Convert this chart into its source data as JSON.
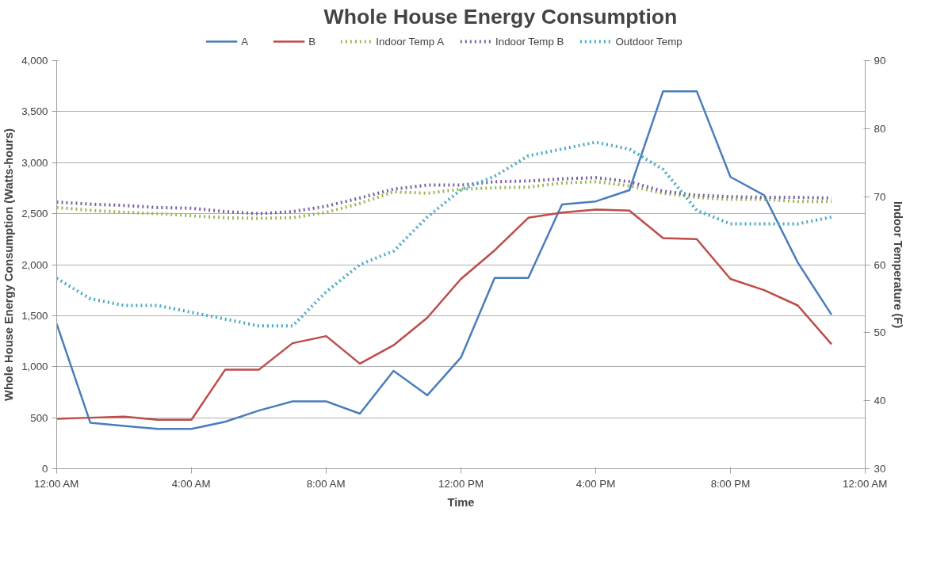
{
  "chart_data": {
    "type": "line",
    "title": "Whole House Energy Consumption",
    "xlabel": "Time",
    "ylabel": "Whole House Energy Consumption (Watts-hours)",
    "y2label": "Indoor Temperature (F)",
    "x": [
      0,
      1,
      2,
      3,
      4,
      5,
      6,
      7,
      8,
      9,
      10,
      11,
      12,
      13,
      14,
      15,
      16,
      17,
      18,
      19,
      20,
      21,
      22,
      23
    ],
    "xlim": [
      0,
      24
    ],
    "xticks": [
      {
        "value": 0,
        "label": "12:00 AM"
      },
      {
        "value": 4,
        "label": "4:00 AM"
      },
      {
        "value": 8,
        "label": "8:00 AM"
      },
      {
        "value": 12,
        "label": "12:00 PM"
      },
      {
        "value": 16,
        "label": "4:00 PM"
      },
      {
        "value": 20,
        "label": "8:00 PM"
      },
      {
        "value": 24,
        "label": "12:00 AM"
      }
    ],
    "ylim": [
      0,
      4000
    ],
    "yticks": [
      {
        "value": 0,
        "label": "0"
      },
      {
        "value": 500,
        "label": "500"
      },
      {
        "value": 1000,
        "label": "1,000"
      },
      {
        "value": 1500,
        "label": "1,500"
      },
      {
        "value": 2000,
        "label": "2,000"
      },
      {
        "value": 2500,
        "label": "2,500"
      },
      {
        "value": 3000,
        "label": "3,000"
      },
      {
        "value": 3500,
        "label": "3,500"
      },
      {
        "value": 4000,
        "label": "4,000"
      }
    ],
    "y2lim": [
      30,
      90
    ],
    "y2ticks": [
      30,
      40,
      50,
      60,
      70,
      80,
      90
    ],
    "grid": "y",
    "legend": "top",
    "marker": "none",
    "series": [
      {
        "name": "A",
        "color": "#4a7ebb",
        "line_style": "solid",
        "values": [
          1420,
          450,
          420,
          390,
          390,
          460,
          570,
          660,
          660,
          540,
          960,
          720,
          1090,
          1870,
          1870,
          2590,
          2620,
          2730,
          3700,
          3700,
          2860,
          2680,
          2020,
          1510
        ]
      },
      {
        "name": "B",
        "color": "#be4b48",
        "line_style": "solid",
        "values": [
          490,
          500,
          510,
          480,
          480,
          970,
          970,
          1230,
          1300,
          1030,
          1210,
          1480,
          1860,
          2140,
          2460,
          2510,
          2540,
          2530,
          2260,
          2250,
          1860,
          1750,
          1600,
          1220
        ]
      },
      {
        "name": "Indoor Temp A",
        "color": "#98b954",
        "line_style": "dotted",
        "axis": "y2",
        "values": [
          68.4,
          68.0,
          67.7,
          67.5,
          67.2,
          66.9,
          66.8,
          66.9,
          67.7,
          69.0,
          70.7,
          70.5,
          71.1,
          71.3,
          71.4,
          72.0,
          72.2,
          71.6,
          70.5,
          69.9,
          69.6,
          69.6,
          69.3,
          69.3
        ]
      },
      {
        "name": "Indoor Temp B",
        "color": "#7d60a0",
        "line_style": "dotted",
        "axis": "y2",
        "values": [
          69.2,
          68.9,
          68.7,
          68.4,
          68.3,
          67.8,
          67.5,
          67.8,
          68.6,
          69.8,
          71.1,
          71.7,
          71.7,
          72.2,
          72.3,
          72.6,
          72.8,
          72.2,
          70.8,
          70.2,
          70.0,
          69.9,
          69.9,
          69.8
        ]
      },
      {
        "name": "Outdoor Temp",
        "color": "#46aac5",
        "line_style": "dotted",
        "axis": "y2",
        "values": [
          58,
          55,
          54,
          54,
          53,
          52,
          51,
          51,
          56,
          60,
          62,
          67,
          71,
          73,
          76,
          77,
          78,
          77,
          74,
          68,
          66,
          66,
          66,
          67
        ]
      }
    ]
  }
}
